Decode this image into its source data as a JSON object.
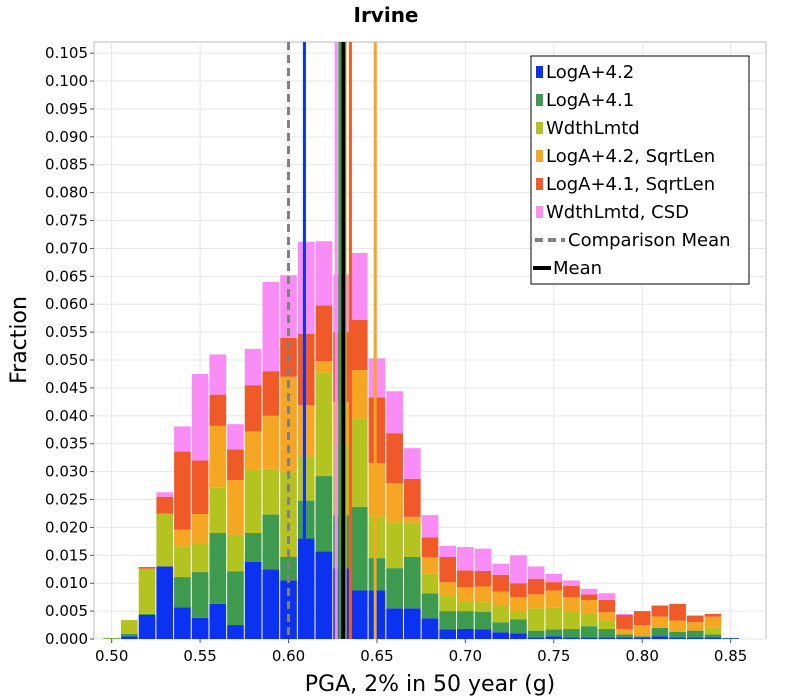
{
  "chart_data": {
    "type": "bar",
    "stacked": true,
    "title": "Irvine",
    "xlabel": "PGA, 2% in 50 year (g)",
    "ylabel": "Fraction",
    "xlim": [
      0.49,
      0.87
    ],
    "ylim": [
      0.0,
      0.107
    ],
    "bin_width": 0.01,
    "grid": true,
    "legend_position": "top-right",
    "x_ticks": [
      "0.50",
      "0.55",
      "0.60",
      "0.65",
      "0.70",
      "0.75",
      "0.80",
      "0.85"
    ],
    "x_tick_values": [
      0.5,
      0.55,
      0.6,
      0.65,
      0.7,
      0.75,
      0.8,
      0.85
    ],
    "y_ticks": [
      "0.000",
      "0.005",
      "0.010",
      "0.015",
      "0.020",
      "0.025",
      "0.030",
      "0.035",
      "0.040",
      "0.045",
      "0.050",
      "0.055",
      "0.060",
      "0.065",
      "0.070",
      "0.075",
      "0.080",
      "0.085",
      "0.090",
      "0.095",
      "0.100",
      "0.105"
    ],
    "y_tick_values": [
      0.0,
      0.005,
      0.01,
      0.015,
      0.02,
      0.025,
      0.03,
      0.035,
      0.04,
      0.045,
      0.05,
      0.055,
      0.06,
      0.065,
      0.07,
      0.075,
      0.08,
      0.085,
      0.09,
      0.095,
      0.1,
      0.105
    ],
    "x": [
      0.5,
      0.51,
      0.52,
      0.53,
      0.54,
      0.55,
      0.56,
      0.57,
      0.58,
      0.59,
      0.6,
      0.61,
      0.62,
      0.63,
      0.64,
      0.65,
      0.66,
      0.67,
      0.68,
      0.69,
      0.7,
      0.71,
      0.72,
      0.73,
      0.74,
      0.75,
      0.76,
      0.77,
      0.78,
      0.79,
      0.8,
      0.81,
      0.82,
      0.83,
      0.84,
      0.85,
      0.86
    ],
    "series": [
      {
        "name": "LogA+4.2",
        "color": "#0a32f0",
        "values": [
          0.0,
          0.0005,
          0.0043,
          0.013,
          0.0057,
          0.0038,
          0.0063,
          0.0025,
          0.0138,
          0.0125,
          0.0105,
          0.018,
          0.0157,
          0.0127,
          0.0087,
          0.0087,
          0.0055,
          0.0055,
          0.0037,
          0.0017,
          0.0018,
          0.0017,
          0.0012,
          0.001,
          0.0003,
          0.0005,
          0.0003,
          0.0003,
          0.0003,
          0.0003,
          0.0003,
          0.0005,
          0.0003,
          0.0003,
          0.0003,
          0.0001,
          0.0
        ]
      },
      {
        "name": "LogA+4.1",
        "color": "#3d9a4e",
        "values": [
          0.0001,
          0.0004,
          0.0002,
          0.0,
          0.0054,
          0.0082,
          0.0127,
          0.0096,
          0.0052,
          0.0098,
          0.0042,
          0.0068,
          0.0135,
          0.0095,
          0.015,
          0.0058,
          0.0072,
          0.0092,
          0.0045,
          0.0033,
          0.0032,
          0.0032,
          0.0018,
          0.0025,
          0.0012,
          0.0012,
          0.0015,
          0.002,
          0.0015,
          0.0005,
          0.0002,
          0.0015,
          0.001,
          0.0012,
          0.0005,
          0.0001,
          0.0
        ]
      },
      {
        "name": "WdthLmtd",
        "color": "#b5c320",
        "values": [
          0.0001,
          0.0025,
          0.0081,
          0.0095,
          0.0055,
          0.0052,
          0.0082,
          0.0066,
          0.0113,
          0.0082,
          0.0153,
          0.0079,
          0.0186,
          0.0125,
          0.0158,
          0.0075,
          0.0082,
          0.0062,
          0.0035,
          0.0027,
          0.0018,
          0.0017,
          0.003,
          0.0015,
          0.004,
          0.004,
          0.0032,
          0.0022,
          0.0015,
          0.0,
          0.0,
          0.0,
          0.0,
          0.0,
          0.0012,
          0.0,
          0.0
        ]
      },
      {
        "name": "LogA+4.2, SqrtLen",
        "color": "#f5a623",
        "values": [
          0.0,
          0.0,
          0.0,
          0.0,
          0.003,
          0.0052,
          0.011,
          0.0098,
          0.0069,
          0.0095,
          0.017,
          0.0092,
          0.002,
          0.0078,
          0.0087,
          0.0095,
          0.007,
          0.001,
          0.003,
          0.0025,
          0.0025,
          0.0028,
          0.0025,
          0.0025,
          0.0025,
          0.003,
          0.0025,
          0.0025,
          0.0015,
          0.001,
          0.002,
          0.002,
          0.002,
          0.0015,
          0.002,
          0.0,
          0.0
        ]
      },
      {
        "name": "LogA+4.1, SqrtLen",
        "color": "#f05a28",
        "values": [
          0.0,
          0.0,
          0.0003,
          0.003,
          0.014,
          0.0096,
          0.0056,
          0.0055,
          0.0083,
          0.008,
          0.007,
          0.0128,
          0.01,
          0.0125,
          0.009,
          0.0118,
          0.009,
          0.0068,
          0.0035,
          0.0045,
          0.003,
          0.0028,
          0.003,
          0.0025,
          0.0028,
          0.0015,
          0.002,
          0.001,
          0.0022,
          0.0025,
          0.0025,
          0.002,
          0.003,
          0.0012,
          0.0005,
          0.0,
          0.0
        ]
      },
      {
        "name": "WdthLmtd, CSD",
        "color": "#fa8cf5",
        "values": [
          0.0,
          0.0,
          0.0,
          0.0008,
          0.0045,
          0.0155,
          0.0072,
          0.0045,
          0.0065,
          0.016,
          0.0112,
          0.0165,
          0.0115,
          0.0103,
          0.012,
          0.007,
          0.0075,
          0.0055,
          0.004,
          0.002,
          0.0042,
          0.004,
          0.002,
          0.005,
          0.0022,
          0.0015,
          0.001,
          0.001,
          0.0012,
          0.0002,
          0.0,
          0.0,
          0.0,
          0.0,
          0.0,
          0.0,
          0.0
        ]
      }
    ],
    "lines": [
      {
        "name": "LogA+4.2",
        "x": 0.609,
        "color": "#0a32f0",
        "style": "solid"
      },
      {
        "name": "LogA+4.1",
        "x": 0.629,
        "color": "#3d9a4e",
        "style": "solid"
      },
      {
        "name": "WdthLmtd",
        "x": 0.632,
        "color": "#b5c320",
        "style": "solid"
      },
      {
        "name": "LogA+4.2, SqrtLen",
        "x": 0.649,
        "color": "#f5a623",
        "style": "solid"
      },
      {
        "name": "LogA+4.1, SqrtLen",
        "x": 0.635,
        "color": "#f05a28",
        "style": "solid"
      },
      {
        "name": "WdthLmtd, CSD",
        "x": 0.627,
        "color": "#fa8cf5",
        "style": "solid"
      },
      {
        "name": "Comparison Mean",
        "x": 0.6,
        "color": "#808080",
        "style": "dashed"
      },
      {
        "name": "Mean",
        "x": 0.631,
        "color": "#000000",
        "style": "solid"
      }
    ],
    "legend": [
      {
        "label": "LogA+4.2",
        "color": "#0a32f0",
        "kind": "box"
      },
      {
        "label": "LogA+4.1",
        "color": "#3d9a4e",
        "kind": "box"
      },
      {
        "label": "WdthLmtd",
        "color": "#b5c320",
        "kind": "box"
      },
      {
        "label": "LogA+4.2, SqrtLen",
        "color": "#f5a623",
        "kind": "box"
      },
      {
        "label": "LogA+4.1, SqrtLen",
        "color": "#f05a28",
        "kind": "box"
      },
      {
        "label": "WdthLmtd, CSD",
        "color": "#fa8cf5",
        "kind": "box"
      },
      {
        "label": "Comparison Mean",
        "color": "#808080",
        "kind": "dash"
      },
      {
        "label": "Mean",
        "color": "#000000",
        "kind": "line"
      }
    ]
  }
}
